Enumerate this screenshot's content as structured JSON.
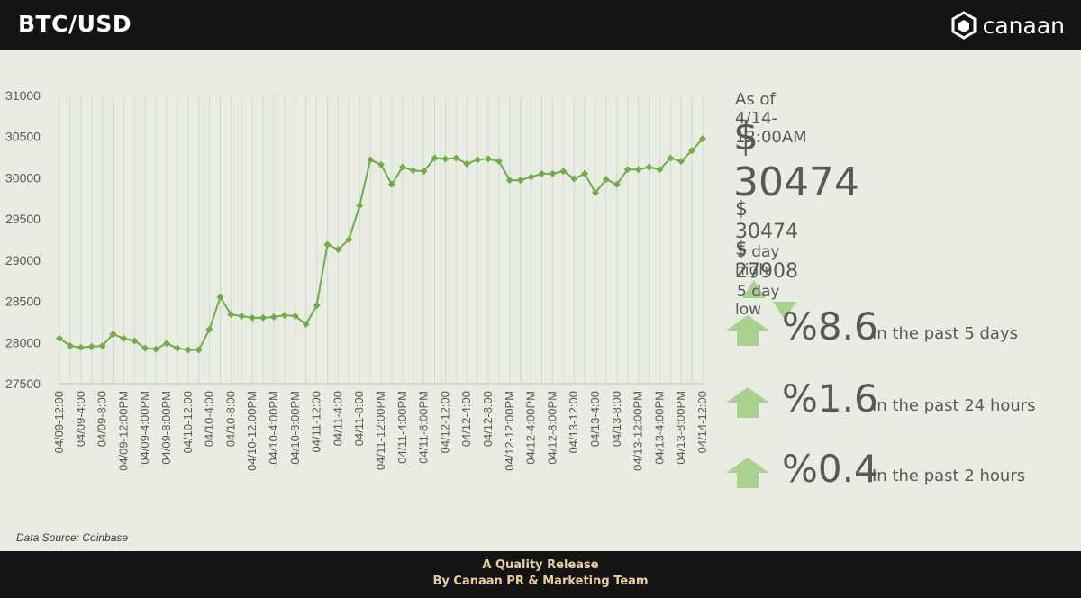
{
  "header": {
    "title": "BTC/USD",
    "logo_text": "canaan"
  },
  "chart_data": {
    "type": "line",
    "title": "",
    "xlabel": "",
    "ylabel": "",
    "ylim": [
      27500,
      31000
    ],
    "yticks": [
      27500,
      28000,
      28500,
      29000,
      29500,
      30000,
      30500,
      31000
    ],
    "grid": "vertical",
    "x_tick_labels": [
      "04/09-12:00",
      "04/09-4:00",
      "04/09-8:00",
      "04/09-12:00PM",
      "04/09-4:00PM",
      "04/09-8:00PM",
      "04/10-12:00",
      "04/10-4:00",
      "04/10-8:00",
      "04/10-12:00PM",
      "04/10-4:00PM",
      "04/10-8:00PM",
      "04/11-12:00",
      "04/11-4:00",
      "04/11-8:00",
      "04/11-12:00PM",
      "04/11-4:00PM",
      "04/11-8:00PM",
      "04/12-12:00",
      "04/12-4:00",
      "04/12-8:00",
      "04/12-12:00PM",
      "04/12-4:00PM",
      "04/12-8:00PM",
      "04/13-12:00",
      "04/13-4:00",
      "04/13-8:00",
      "04/13-12:00PM",
      "04/13-4:00PM",
      "04/13-8:00PM",
      "04/14-12:00"
    ],
    "series": [
      {
        "values": [
          28050,
          27960,
          27940,
          27950,
          27960,
          28100,
          28050,
          28020,
          27930,
          27920,
          27990,
          27930,
          27910,
          27910,
          28160,
          28550,
          28340,
          28320,
          28300,
          28300,
          28310,
          28330,
          28320,
          28220,
          28450,
          29190,
          29130,
          29250,
          29660,
          30220,
          30160,
          29920,
          30130,
          30090,
          30080,
          30240,
          30230,
          30240,
          30170,
          30220,
          30230,
          30200,
          29970,
          29970,
          30010,
          30050,
          30050,
          30080,
          29990,
          30050,
          29820,
          29980,
          29920,
          30100,
          30100,
          30130,
          30100,
          30240,
          30200,
          30330,
          30474
        ]
      }
    ],
    "line_color": "#70ad47"
  },
  "stats": {
    "as_of": "As of 4/14-12:00AM",
    "price": "$ 30474",
    "high_value": "$ 30474",
    "high_label": "5 day high",
    "low_value": "$ 27908",
    "low_label": "5 day low",
    "changes": [
      {
        "pct": "%8.6",
        "label": "In the past 5 days"
      },
      {
        "pct": "%1.6",
        "label": "In the past 24 hours"
      },
      {
        "pct": "%0.4",
        "label": "In the past 2 hours"
      }
    ]
  },
  "source": "Data Source: Coinbase",
  "footer": {
    "line1": "A Quality Release",
    "line2": "By Canaan PR & Marketing Team"
  },
  "colors": {
    "accent": "#70ad47",
    "arrow": "#a9d18e",
    "panel": "#e8ece3",
    "bar": "#141414",
    "footer_text": "#e8cfa0"
  }
}
